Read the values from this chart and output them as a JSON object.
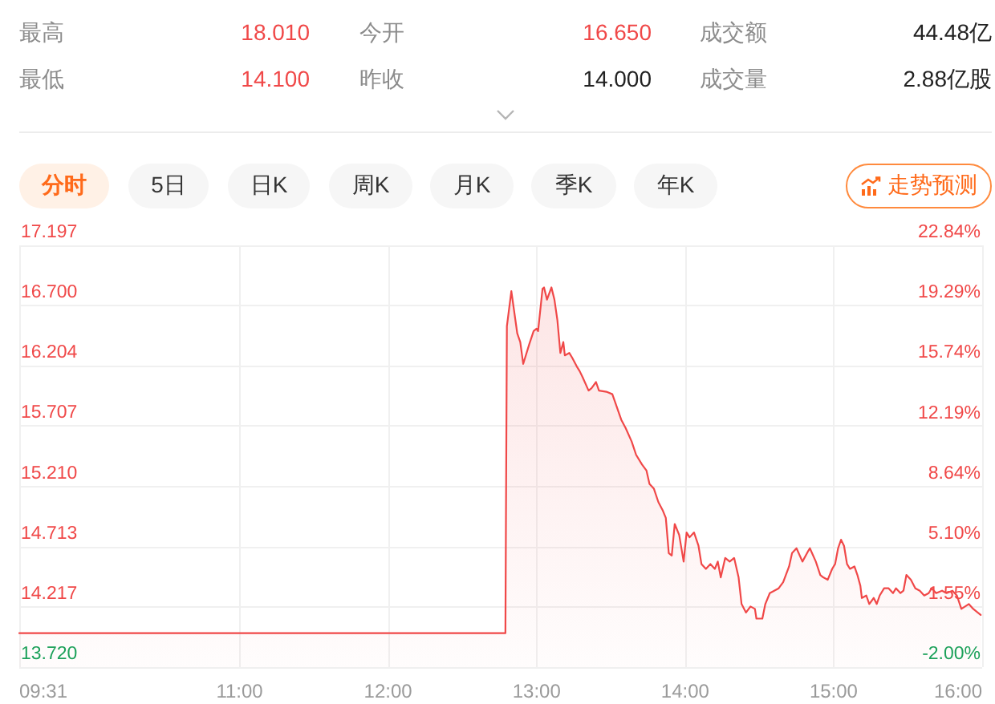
{
  "chart_data": {
    "type": "area",
    "color": "#f04848",
    "grid": true,
    "x": [
      9.5167,
      12.79,
      12.8,
      12.83,
      12.87,
      12.89,
      12.91,
      12.95,
      12.98,
      13.0,
      13.01,
      13.04,
      13.05,
      13.07,
      13.1,
      13.12,
      13.14,
      13.16,
      13.18,
      13.19,
      13.22,
      13.24,
      13.27,
      13.29,
      13.31,
      13.35,
      13.37,
      13.4,
      13.42,
      13.47,
      13.51,
      13.55,
      13.57,
      13.6,
      13.64,
      13.67,
      13.71,
      13.74,
      13.76,
      13.79,
      13.82,
      13.85,
      13.87,
      13.89,
      13.91,
      13.93,
      13.96,
      13.99,
      14.01,
      14.03,
      14.06,
      14.09,
      14.11,
      14.14,
      14.17,
      14.2,
      14.22,
      14.24,
      14.27,
      14.3,
      14.33,
      14.36,
      14.38,
      14.41,
      14.44,
      14.47,
      14.48,
      14.52,
      14.54,
      14.57,
      14.6,
      14.63,
      14.66,
      14.7,
      14.72,
      14.75,
      14.79,
      14.83,
      14.84,
      14.88,
      14.91,
      14.93,
      14.96,
      14.99,
      15.01,
      15.03,
      15.05,
      15.07,
      15.09,
      15.11,
      15.14,
      15.16,
      15.18,
      15.19,
      15.22,
      15.24,
      15.27,
      15.29,
      15.31,
      15.34,
      15.37,
      15.4,
      15.42,
      15.45,
      15.47,
      15.49,
      15.52,
      15.55,
      15.58,
      15.61,
      15.64,
      15.66,
      15.69,
      15.73,
      15.76,
      15.8,
      15.83,
      15.86,
      15.91,
      15.94,
      15.99
    ],
    "values": [
      14.0,
      14.0,
      16.53,
      16.82,
      16.47,
      16.4,
      16.22,
      16.38,
      16.49,
      16.51,
      16.49,
      16.84,
      16.85,
      16.75,
      16.85,
      16.75,
      16.58,
      16.31,
      16.4,
      16.29,
      16.31,
      16.27,
      16.2,
      16.16,
      16.11,
      16.0,
      16.02,
      16.07,
      16.0,
      15.99,
      15.97,
      15.83,
      15.76,
      15.69,
      15.58,
      15.47,
      15.39,
      15.34,
      15.23,
      15.19,
      15.08,
      15.01,
      14.95,
      14.66,
      14.64,
      14.9,
      14.81,
      14.59,
      14.83,
      14.79,
      14.83,
      14.72,
      14.57,
      14.53,
      14.57,
      14.53,
      14.59,
      14.46,
      14.62,
      14.59,
      14.62,
      14.46,
      14.24,
      14.17,
      14.22,
      14.2,
      14.12,
      14.12,
      14.24,
      14.33,
      14.35,
      14.37,
      14.42,
      14.55,
      14.66,
      14.7,
      14.59,
      14.68,
      14.7,
      14.59,
      14.48,
      14.46,
      14.44,
      14.53,
      14.57,
      14.7,
      14.77,
      14.72,
      14.57,
      14.53,
      14.55,
      14.48,
      14.39,
      14.29,
      14.31,
      14.24,
      14.29,
      14.24,
      14.31,
      14.37,
      14.37,
      14.33,
      14.37,
      14.33,
      14.35,
      14.48,
      14.44,
      14.37,
      14.35,
      14.31,
      14.33,
      14.37,
      14.33,
      14.35,
      14.33,
      14.35,
      14.31,
      14.2,
      14.24,
      14.2,
      14.15
    ],
    "xlim": [
      9.5167,
      16
    ],
    "xticks": [
      {
        "value": 9.5167,
        "label": "09:31"
      },
      {
        "value": 11,
        "label": "11:00"
      },
      {
        "value": 12,
        "label": "12:00"
      },
      {
        "value": 13,
        "label": "13:00"
      },
      {
        "value": 14,
        "label": "14:00"
      },
      {
        "value": 15,
        "label": "15:00"
      },
      {
        "value": 16,
        "label": "16:00"
      }
    ],
    "ylim": [
      13.72,
      17.197
    ],
    "yticks": [
      {
        "value": 13.72,
        "label": "13.720"
      },
      {
        "value": 14.217,
        "label": "14.217"
      },
      {
        "value": 14.713,
        "label": "14.713"
      },
      {
        "value": 15.21,
        "label": "15.210"
      },
      {
        "value": 15.707,
        "label": "15.707"
      },
      {
        "value": 16.204,
        "label": "16.204"
      },
      {
        "value": 16.7,
        "label": "16.700"
      },
      {
        "value": 17.197,
        "label": "17.197"
      }
    ],
    "y2lim": [
      -2.0,
      22.84
    ],
    "y2ticks": [
      {
        "value": -2,
        "label": "-2.00%"
      },
      {
        "value": 1.55,
        "label": "1.55%"
      },
      {
        "value": 5.1,
        "label": "5.10%"
      },
      {
        "value": 8.64,
        "label": "8.64%"
      },
      {
        "value": 12.19,
        "label": "12.19%"
      },
      {
        "value": 15.74,
        "label": "15.74%"
      },
      {
        "value": 19.29,
        "label": "19.29%"
      },
      {
        "value": 22.84,
        "label": "22.84%"
      }
    ],
    "annotations": [
      "最高",
      "18.010",
      "今开",
      "16.650",
      "成交额",
      "44.48亿",
      "最低",
      "14.100",
      "昨收",
      "14.000",
      "成交量",
      "2.88亿股",
      "分时",
      "5日",
      "日K",
      "周K",
      "月K",
      "季K",
      "年K",
      "走势预测"
    ]
  }
}
